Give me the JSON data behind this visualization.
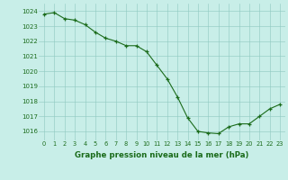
{
  "x": [
    0,
    1,
    2,
    3,
    4,
    5,
    6,
    7,
    8,
    9,
    10,
    11,
    12,
    13,
    14,
    15,
    16,
    17,
    18,
    19,
    20,
    21,
    22,
    23
  ],
  "y": [
    1023.8,
    1023.9,
    1023.5,
    1023.4,
    1023.1,
    1022.6,
    1022.2,
    1022.0,
    1021.7,
    1021.7,
    1021.3,
    1020.4,
    1019.5,
    1018.3,
    1016.9,
    1016.0,
    1015.9,
    1015.85,
    1016.3,
    1016.5,
    1016.5,
    1017.0,
    1017.5,
    1017.8
  ],
  "line_color": "#1a6b1a",
  "marker_color": "#1a6b1a",
  "bg_color": "#c8eee8",
  "grid_color": "#8ec8c0",
  "xlabel": "Graphe pression niveau de la mer (hPa)",
  "xlabel_color": "#1a6b1a",
  "tick_color": "#1a6b1a",
  "ylim": [
    1015.4,
    1024.5
  ],
  "yticks": [
    1016,
    1017,
    1018,
    1019,
    1020,
    1021,
    1022,
    1023,
    1024
  ],
  "xlim": [
    -0.5,
    23.5
  ],
  "xticks": [
    0,
    1,
    2,
    3,
    4,
    5,
    6,
    7,
    8,
    9,
    10,
    11,
    12,
    13,
    14,
    15,
    16,
    17,
    18,
    19,
    20,
    21,
    22,
    23
  ]
}
